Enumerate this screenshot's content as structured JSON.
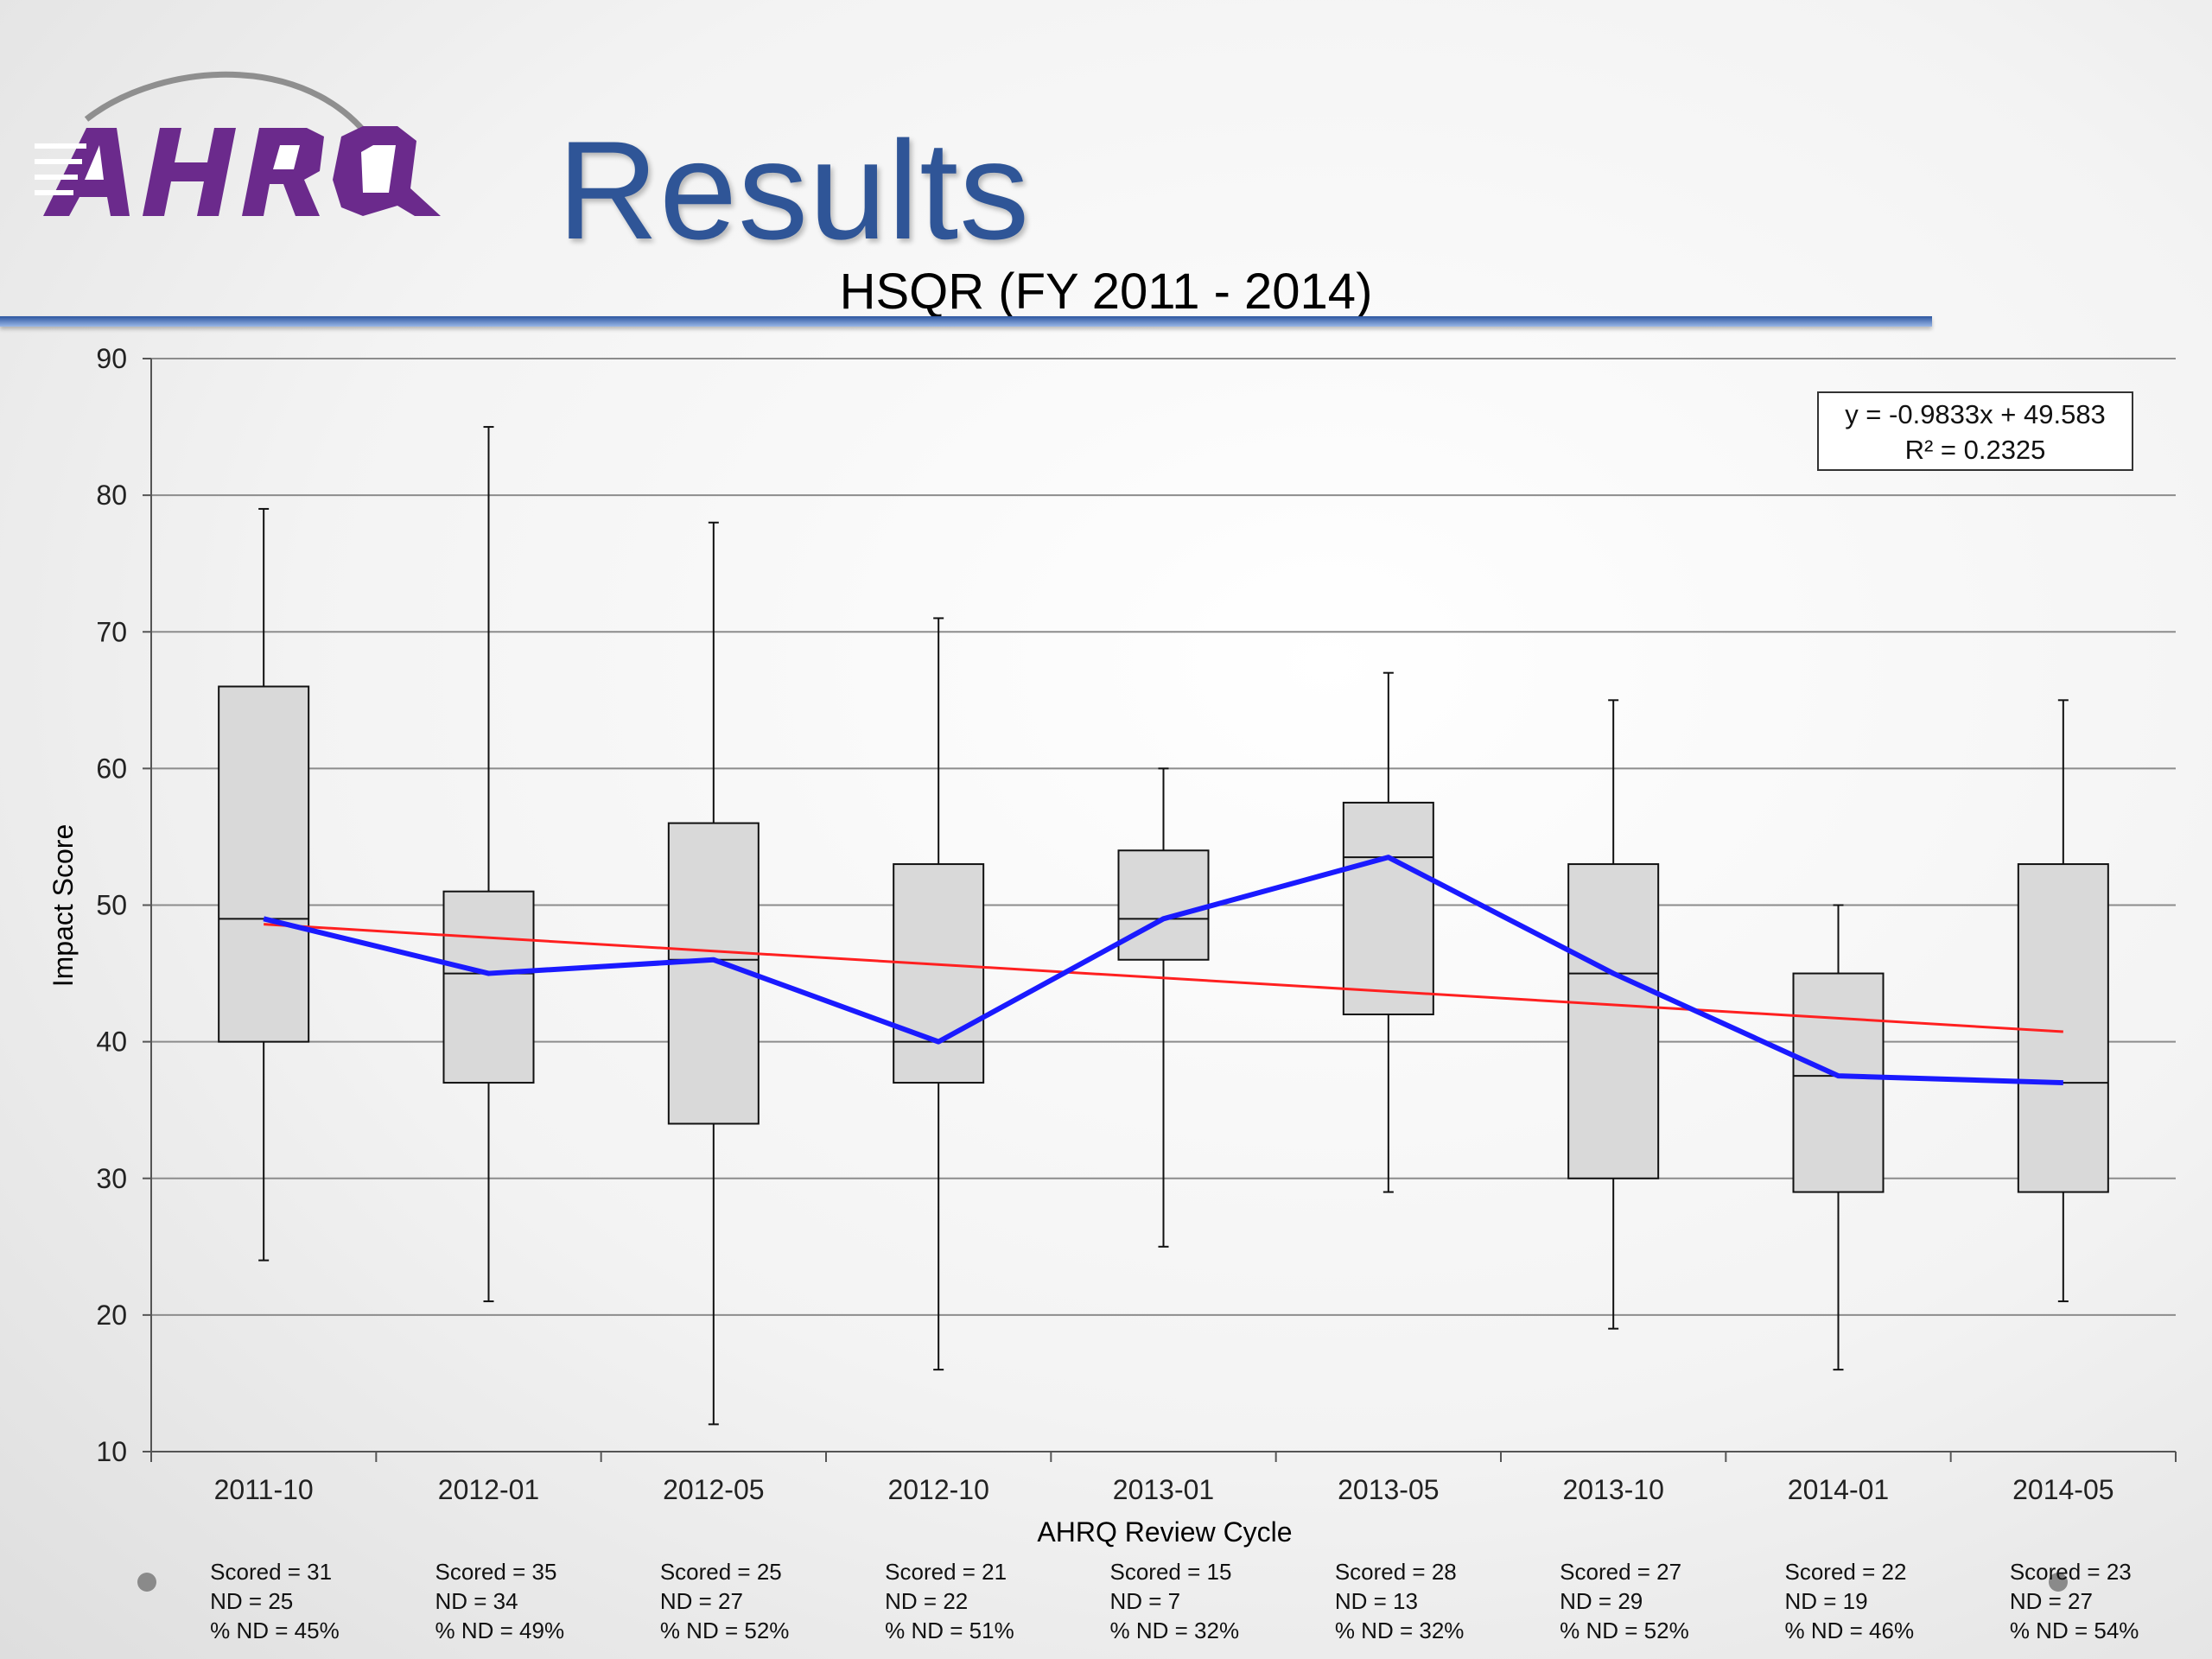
{
  "slide": {
    "title": "Results",
    "logo_text": "AHRQ"
  },
  "chart_data": {
    "type": "box",
    "title": "HSQR (FY 2011 - 2014)",
    "xlabel": "AHRQ Review Cycle",
    "ylabel": "Impact Score",
    "ylim": [
      10,
      90
    ],
    "yticks": [
      10,
      20,
      30,
      40,
      50,
      60,
      70,
      80,
      90
    ],
    "grid": true,
    "categories": [
      "2011-10",
      "2012-01",
      "2012-05",
      "2012-10",
      "2013-01",
      "2013-05",
      "2013-10",
      "2014-01",
      "2014-05"
    ],
    "boxes": [
      {
        "min": 24,
        "q1": 40,
        "median": 49,
        "q3": 66,
        "max": 79
      },
      {
        "min": 21,
        "q1": 37,
        "median": 45,
        "q3": 51,
        "max": 85
      },
      {
        "min": 12,
        "q1": 34,
        "median": 46,
        "q3": 56,
        "max": 78
      },
      {
        "min": 16,
        "q1": 37,
        "median": 40,
        "q3": 53,
        "max": 71
      },
      {
        "min": 25,
        "q1": 46,
        "median": 49,
        "q3": 54,
        "max": 60
      },
      {
        "min": 29,
        "q1": 42,
        "median": 53.5,
        "q3": 57.5,
        "max": 67
      },
      {
        "min": 19,
        "q1": 30,
        "median": 45,
        "q3": 53,
        "max": 65
      },
      {
        "min": 16,
        "q1": 29,
        "median": 37.5,
        "q3": 45,
        "max": 50
      },
      {
        "min": 21,
        "q1": 29,
        "median": 37,
        "q3": 53,
        "max": 65
      }
    ],
    "median_line_color": "#1a1aff",
    "trendline": {
      "slope": -0.9833,
      "intercept": 49.583,
      "color": "#ff2020",
      "equation": "y = -0.9833x + 49.583",
      "r_squared": "R² = 0.2325"
    },
    "box_fill": "#d9d9d9",
    "stats": [
      {
        "scored": "Scored = 31",
        "nd": "ND = 25",
        "pct": "% ND = 45%"
      },
      {
        "scored": "Scored = 35",
        "nd": "ND = 34",
        "pct": "% ND = 49%"
      },
      {
        "scored": "Scored = 25",
        "nd": "ND = 27",
        "pct": "% ND = 52%"
      },
      {
        "scored": "Scored = 21",
        "nd": "ND = 22",
        "pct": "% ND = 51%"
      },
      {
        "scored": "Scored = 15",
        "nd": "ND = 7",
        "pct": "% ND = 32%"
      },
      {
        "scored": "Scored = 28",
        "nd": "ND = 13",
        "pct": "% ND = 32%"
      },
      {
        "scored": "Scored = 27",
        "nd": "ND = 29",
        "pct": "% ND = 52%"
      },
      {
        "scored": "Scored = 22",
        "nd": "ND = 19",
        "pct": "% ND = 46%"
      },
      {
        "scored": "Scored = 23",
        "nd": "ND = 27",
        "pct": "% ND = 54%"
      }
    ]
  },
  "colors": {
    "title_blue": "#2f5597",
    "logo_purple": "#6b2a8c"
  }
}
